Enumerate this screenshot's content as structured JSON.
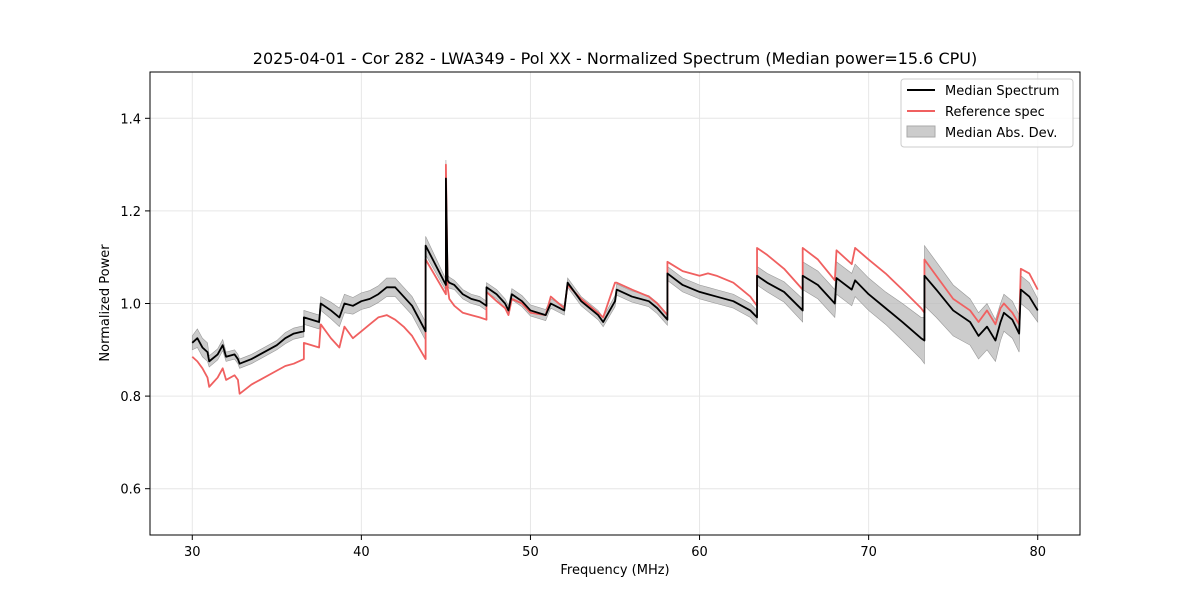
{
  "chart_data": {
    "type": "line",
    "title": "2025-04-01 - Cor 282 - LWA349 - Pol XX - Normalized Spectrum (Median power=15.6 CPU)",
    "xlabel": "Frequency (MHz)",
    "ylabel": "Normalized Power",
    "xlim": [
      27.5,
      82.5
    ],
    "ylim": [
      0.5,
      1.5
    ],
    "xticks": [
      30,
      40,
      50,
      60,
      70,
      80
    ],
    "yticks": [
      0.6,
      0.8,
      1.0,
      1.2,
      1.4
    ],
    "xtick_labels": [
      "30",
      "40",
      "50",
      "60",
      "70",
      "80"
    ],
    "ytick_labels": [
      "0.6",
      "0.8",
      "1.0",
      "1.2",
      "1.4"
    ],
    "grid": true,
    "legend_position": "top-right",
    "colors": {
      "median": "#000000",
      "reference": "#f06060",
      "mad": "#bbbbbb"
    },
    "series": [
      {
        "name": "Median Spectrum",
        "x": [
          30.0,
          30.3,
          30.6,
          30.9,
          31.0,
          31.5,
          31.8,
          32.0,
          32.5,
          32.7,
          32.8,
          33.5,
          34.0,
          35.0,
          35.5,
          36.0,
          36.6,
          36.6,
          37.5,
          37.6,
          38.2,
          38.7,
          39.0,
          39.5,
          40.0,
          40.5,
          41.0,
          41.5,
          42.0,
          42.5,
          43.0,
          43.8,
          43.8,
          45.0,
          45.0,
          45.1,
          45.2,
          45.5,
          46.0,
          46.5,
          47.0,
          47.4,
          47.4,
          48.0,
          48.5,
          48.7,
          48.9,
          49.5,
          50.0,
          50.9,
          51.2,
          52.0,
          52.2,
          53.0,
          54.0,
          54.3,
          55.0,
          55.1,
          56.0,
          57.0,
          57.5,
          58.1,
          58.1,
          59.0,
          60.0,
          60.5,
          61.0,
          62.0,
          62.5,
          63.0,
          63.4,
          63.4,
          64.0,
          65.0,
          66.1,
          66.1,
          67.0,
          68.0,
          68.1,
          69.0,
          69.2,
          70.0,
          71.0,
          72.0,
          73.1,
          73.3,
          73.3,
          74.0,
          75.0,
          76.0,
          76.5,
          77.0,
          77.5,
          77.8,
          78.0,
          78.5,
          78.9,
          79.0,
          79.5,
          80.0
        ],
        "values": [
          0.915,
          0.925,
          0.905,
          0.895,
          0.875,
          0.89,
          0.91,
          0.885,
          0.89,
          0.88,
          0.87,
          0.88,
          0.89,
          0.91,
          0.925,
          0.935,
          0.94,
          0.97,
          0.96,
          1.0,
          0.985,
          0.97,
          1.0,
          0.995,
          1.005,
          1.01,
          1.02,
          1.035,
          1.035,
          1.015,
          0.995,
          0.94,
          1.125,
          1.04,
          1.27,
          1.05,
          1.045,
          1.04,
          1.02,
          1.01,
          1.005,
          0.995,
          1.035,
          1.02,
          1.0,
          0.985,
          1.02,
          1.005,
          0.985,
          0.975,
          1.0,
          0.985,
          1.045,
          1.005,
          0.975,
          0.96,
          1.005,
          1.03,
          1.015,
          1.005,
          0.99,
          0.965,
          1.065,
          1.04,
          1.025,
          1.02,
          1.015,
          1.005,
          0.995,
          0.985,
          0.97,
          1.06,
          1.045,
          1.025,
          0.985,
          1.06,
          1.04,
          1.0,
          1.055,
          1.03,
          1.05,
          1.02,
          0.99,
          0.96,
          0.925,
          0.92,
          1.06,
          1.03,
          0.985,
          0.96,
          0.93,
          0.95,
          0.92,
          0.96,
          0.98,
          0.965,
          0.935,
          1.03,
          1.015,
          0.985
        ]
      },
      {
        "name": "Reference spec",
        "x": [
          30.0,
          30.3,
          30.6,
          30.9,
          31.0,
          31.5,
          31.8,
          32.0,
          32.5,
          32.7,
          32.8,
          33.5,
          34.0,
          35.0,
          35.5,
          36.0,
          36.6,
          36.6,
          37.5,
          37.6,
          38.2,
          38.7,
          39.0,
          39.5,
          40.0,
          40.5,
          41.0,
          41.5,
          42.0,
          42.5,
          43.0,
          43.8,
          43.8,
          45.0,
          45.0,
          45.1,
          45.2,
          45.5,
          46.0,
          46.5,
          47.0,
          47.4,
          47.4,
          48.0,
          48.5,
          48.7,
          48.9,
          49.5,
          50.0,
          50.9,
          51.2,
          52.0,
          52.2,
          53.0,
          54.0,
          54.3,
          55.0,
          55.1,
          56.0,
          57.0,
          57.5,
          58.1,
          58.1,
          59.0,
          60.0,
          60.5,
          61.0,
          62.0,
          62.5,
          63.0,
          63.4,
          63.4,
          64.0,
          65.0,
          66.1,
          66.1,
          67.0,
          68.0,
          68.1,
          69.0,
          69.2,
          70.0,
          71.0,
          72.0,
          73.1,
          73.3,
          73.3,
          74.0,
          75.0,
          76.0,
          76.5,
          77.0,
          77.5,
          77.8,
          78.0,
          78.5,
          78.9,
          79.0,
          79.5,
          80.0
        ],
        "values": [
          0.885,
          0.875,
          0.86,
          0.84,
          0.82,
          0.84,
          0.86,
          0.835,
          0.845,
          0.835,
          0.805,
          0.825,
          0.835,
          0.855,
          0.865,
          0.87,
          0.88,
          0.915,
          0.905,
          0.955,
          0.925,
          0.905,
          0.95,
          0.925,
          0.94,
          0.955,
          0.97,
          0.975,
          0.965,
          0.95,
          0.93,
          0.88,
          1.095,
          1.02,
          1.3,
          1.035,
          1.01,
          0.995,
          0.98,
          0.975,
          0.97,
          0.965,
          1.025,
          1.005,
          0.99,
          0.975,
          1.01,
          1.0,
          0.98,
          0.975,
          1.015,
          0.99,
          1.04,
          1.01,
          0.98,
          0.97,
          1.045,
          1.045,
          1.03,
          1.015,
          1.0,
          0.975,
          1.09,
          1.07,
          1.06,
          1.065,
          1.06,
          1.045,
          1.03,
          1.015,
          0.995,
          1.12,
          1.105,
          1.075,
          1.03,
          1.12,
          1.095,
          1.05,
          1.115,
          1.085,
          1.12,
          1.095,
          1.065,
          1.03,
          0.99,
          0.98,
          1.095,
          1.06,
          1.01,
          0.985,
          0.96,
          0.985,
          0.955,
          0.99,
          1.0,
          0.98,
          0.955,
          1.075,
          1.065,
          1.03
        ]
      },
      {
        "name": "Median Abs. Dev.",
        "type": "band",
        "x": [
          30.0,
          30.3,
          30.6,
          30.9,
          31.0,
          31.5,
          31.8,
          32.0,
          32.5,
          32.7,
          32.8,
          33.5,
          34.0,
          35.0,
          35.5,
          36.0,
          36.6,
          36.6,
          37.5,
          37.6,
          38.2,
          38.7,
          39.0,
          39.5,
          40.0,
          40.5,
          41.0,
          41.5,
          42.0,
          42.5,
          43.0,
          43.8,
          43.8,
          45.0,
          45.0,
          45.1,
          45.2,
          45.5,
          46.0,
          46.5,
          47.0,
          47.4,
          47.4,
          48.0,
          48.5,
          48.7,
          48.9,
          49.5,
          50.0,
          50.9,
          51.2,
          52.0,
          52.2,
          53.0,
          54.0,
          54.3,
          55.0,
          55.1,
          56.0,
          57.0,
          57.5,
          58.1,
          58.1,
          59.0,
          60.0,
          60.5,
          61.0,
          62.0,
          62.5,
          63.0,
          63.4,
          63.4,
          64.0,
          65.0,
          66.1,
          66.1,
          67.0,
          68.0,
          68.1,
          69.0,
          69.2,
          70.0,
          71.0,
          72.0,
          73.1,
          73.3,
          73.3,
          74.0,
          75.0,
          76.0,
          76.5,
          77.0,
          77.5,
          77.8,
          78.0,
          78.5,
          78.9,
          79.0,
          79.5,
          80.0
        ],
        "half_width": [
          0.015,
          0.02,
          0.02,
          0.02,
          0.012,
          0.012,
          0.012,
          0.01,
          0.01,
          0.01,
          0.01,
          0.01,
          0.01,
          0.01,
          0.012,
          0.012,
          0.012,
          0.015,
          0.015,
          0.015,
          0.018,
          0.02,
          0.02,
          0.018,
          0.018,
          0.018,
          0.018,
          0.02,
          0.02,
          0.02,
          0.02,
          0.02,
          0.02,
          0.012,
          0.04,
          0.012,
          0.012,
          0.01,
          0.01,
          0.01,
          0.01,
          0.01,
          0.01,
          0.01,
          0.01,
          0.01,
          0.012,
          0.012,
          0.012,
          0.012,
          0.01,
          0.01,
          0.01,
          0.01,
          0.01,
          0.01,
          0.012,
          0.012,
          0.012,
          0.012,
          0.012,
          0.012,
          0.015,
          0.015,
          0.015,
          0.015,
          0.015,
          0.015,
          0.015,
          0.015,
          0.015,
          0.02,
          0.02,
          0.022,
          0.025,
          0.03,
          0.03,
          0.03,
          0.035,
          0.035,
          0.035,
          0.035,
          0.035,
          0.04,
          0.045,
          0.05,
          0.065,
          0.06,
          0.055,
          0.05,
          0.05,
          0.05,
          0.045,
          0.04,
          0.04,
          0.04,
          0.04,
          0.03,
          0.03,
          0.025
        ]
      }
    ]
  }
}
